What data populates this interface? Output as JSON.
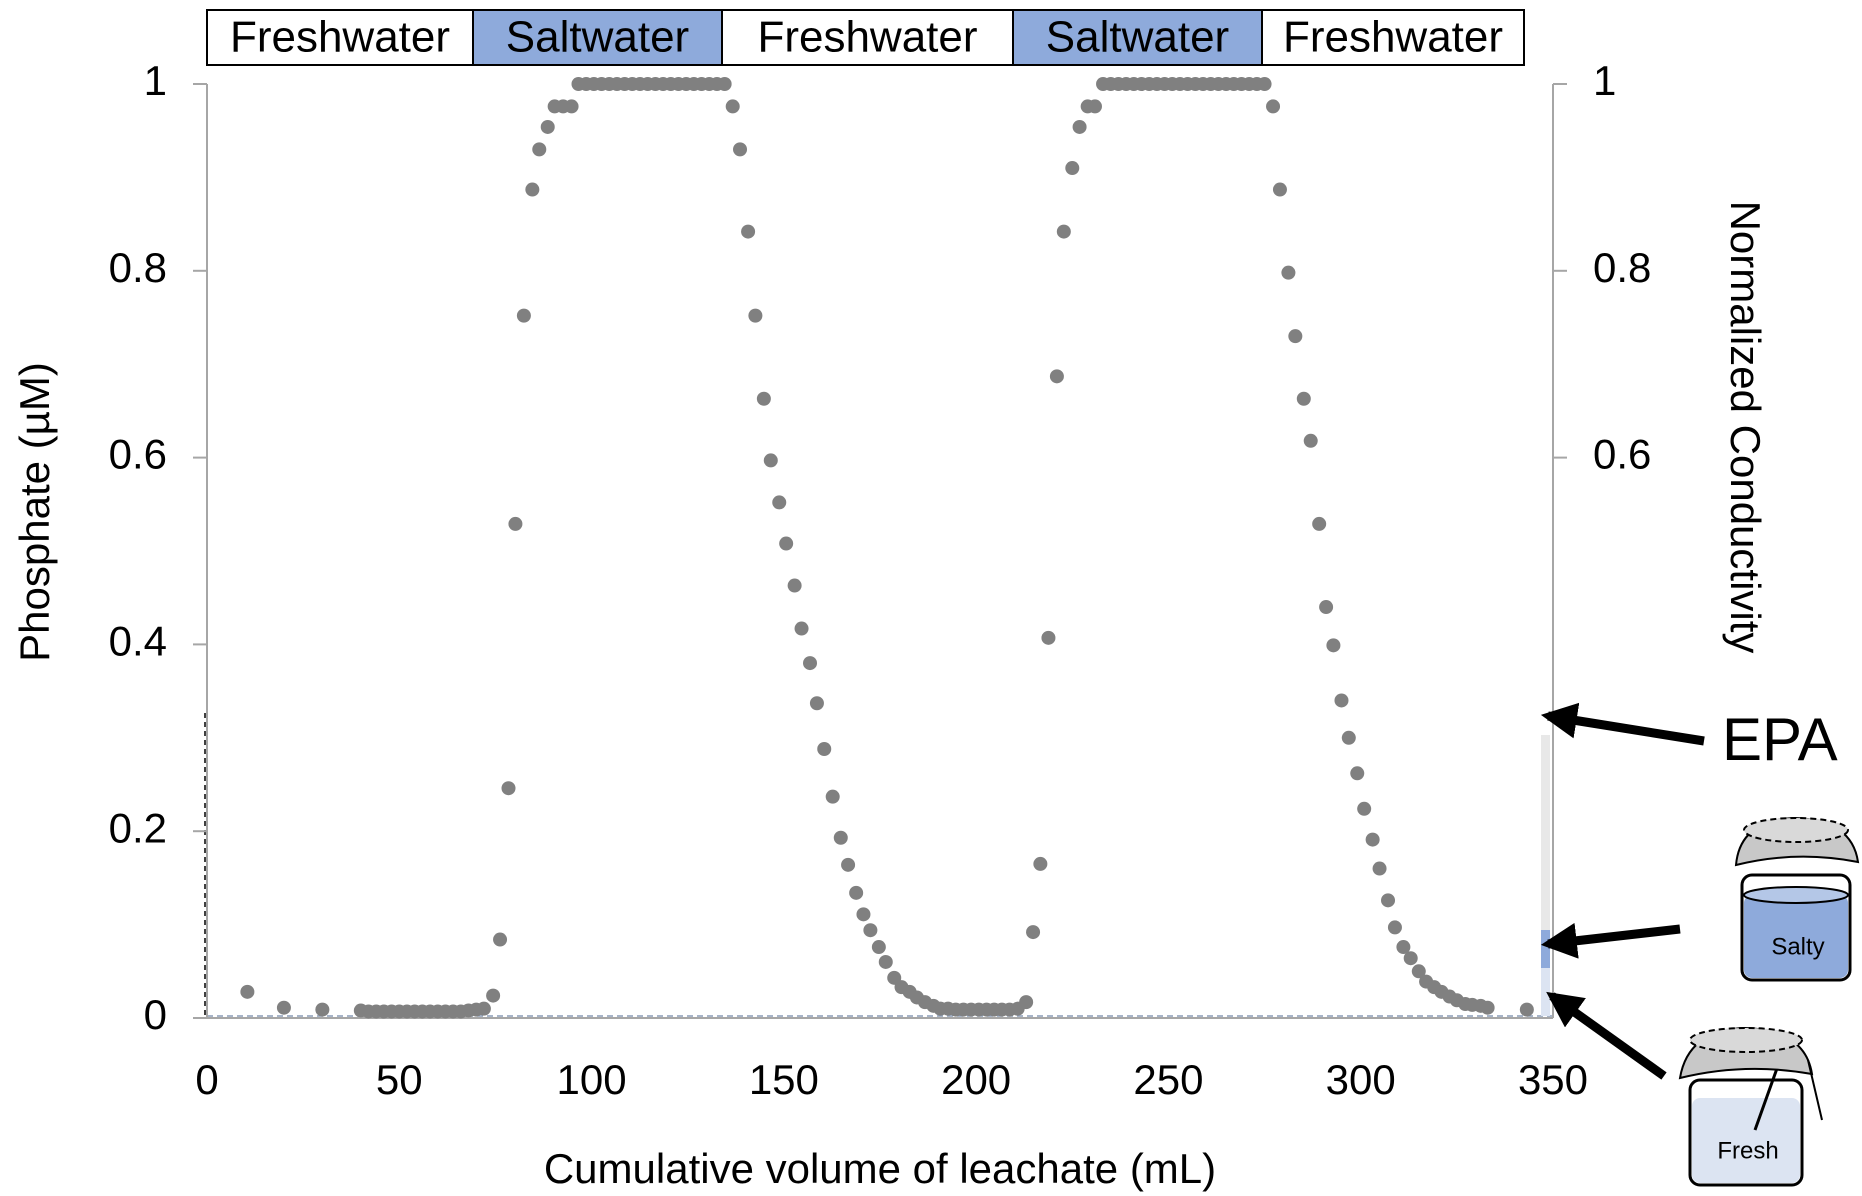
{
  "chart_data": {
    "type": "scatter",
    "phases": [
      {
        "label": "Freshwater",
        "color": "#ffffff"
      },
      {
        "label": "Saltwater",
        "color": "#8eaadb"
      },
      {
        "label": "Freshwater",
        "color": "#ffffff"
      },
      {
        "label": "Saltwater",
        "color": "#8eaadb"
      },
      {
        "label": "Freshwater",
        "color": "#ffffff"
      }
    ],
    "x_label": "Cumulative volume of leachate (mL)",
    "y_label": "Phosphate (µM)",
    "y2_label": "Normalized Conductivity",
    "annotations": {
      "epa": "EPA",
      "salty": "Salty",
      "fresh": "Fresh"
    },
    "xlim": [
      0,
      350
    ],
    "xticks": [
      0,
      50,
      100,
      150,
      200,
      250,
      300,
      350
    ],
    "ylim": [
      0,
      1
    ],
    "yticks": [
      0,
      0.2,
      0.4,
      0.6,
      0.8,
      1
    ],
    "y2lim": [
      0,
      1
    ],
    "y2ticks": [
      0.6,
      0.8,
      1
    ],
    "x": [
      10.5,
      20,
      30,
      40,
      42,
      44,
      46,
      48,
      50,
      52,
      54,
      56,
      58,
      60,
      62,
      64,
      66,
      68,
      70,
      72,
      74.4,
      76.2,
      78.4,
      80.2,
      82.4,
      84.6,
      86.4,
      88.6,
      90.4,
      92.6,
      94.8,
      96.6,
      98.6,
      100.6,
      102.6,
      104.6,
      106.6,
      108.6,
      110.6,
      112.6,
      114.6,
      116.6,
      118.6,
      120.6,
      122.6,
      124.6,
      126.6,
      128.6,
      130.6,
      132.6,
      134.6,
      136.7,
      138.6,
      140.7,
      142.6,
      144.8,
      146.6,
      148.8,
      150.6,
      152.8,
      154.6,
      156.8,
      158.6,
      160.5,
      162.7,
      164.8,
      166.7,
      168.8,
      170.7,
      172.5,
      174.7,
      176.5,
      178.7,
      180.6,
      182.7,
      184.6,
      186.7,
      188.9,
      190.7,
      192.7,
      194.7,
      196.7,
      198.7,
      200.7,
      202.7,
      204.7,
      206.7,
      208.7,
      210.8,
      213,
      214.8,
      216.7,
      218.8,
      221,
      222.8,
      225,
      226.9,
      229,
      230.9,
      233,
      235,
      237,
      239,
      241,
      243,
      245,
      247,
      249,
      251,
      253,
      255,
      257,
      259,
      261,
      263,
      265,
      267,
      269,
      271,
      273,
      275,
      277.2,
      279,
      281.2,
      283,
      285.2,
      287,
      289.2,
      291,
      292.9,
      295,
      296.9,
      299.1,
      300.9,
      303.1,
      304.9,
      307.1,
      308.9,
      311.1,
      313,
      315.1,
      317,
      319.1,
      321,
      323.1,
      325,
      327.2,
      329,
      331.2,
      333,
      343.2
    ],
    "series": [
      {
        "color": "#808080",
        "axis": "y2",
        "values": [
          0.028,
          0.011,
          0.009,
          0.008,
          0.007,
          0.007,
          0.007,
          0.007,
          0.007,
          0.007,
          0.007,
          0.007,
          0.007,
          0.007,
          0.007,
          0.007,
          0.007,
          0.008,
          0.009,
          0.01,
          0.024,
          0.084,
          0.246,
          0.529,
          0.752,
          0.887,
          0.93,
          0.954,
          0.976,
          0.976,
          0.976,
          1,
          1,
          1,
          1,
          1,
          1,
          1,
          1,
          1,
          1,
          1,
          1,
          1,
          1,
          1,
          1,
          1,
          1,
          1,
          1,
          0.976,
          0.93,
          0.842,
          0.752,
          0.663,
          0.597,
          0.552,
          0.508,
          0.463,
          0.417,
          0.38,
          0.337,
          0.288,
          0.237,
          0.193,
          0.164,
          0.134,
          0.111,
          0.094,
          0.076,
          0.06,
          0.043,
          0.033,
          0.028,
          0.022,
          0.017,
          0.013,
          0.01,
          0.01,
          0.009,
          0.009,
          0.009,
          0.009,
          0.009,
          0.009,
          0.009,
          0.009,
          0.01,
          0.017,
          0.092,
          0.165,
          0.407,
          0.687,
          0.842,
          0.91,
          0.954,
          0.976,
          0.976,
          1,
          1,
          1,
          1,
          1,
          1,
          1,
          1,
          1,
          1,
          1,
          1,
          1,
          1,
          1,
          1,
          1,
          1,
          1,
          1,
          1,
          1,
          0.976,
          0.887,
          0.798,
          0.73,
          0.663,
          0.618,
          0.529,
          0.44,
          0.399,
          0.34,
          0.3,
          0.262,
          0.224,
          0.191,
          0.16,
          0.126,
          0.097,
          0.076,
          0.064,
          0.05,
          0.039,
          0.033,
          0.028,
          0.023,
          0.019,
          0.015,
          0.014,
          0.013,
          0.011,
          0.009
        ]
      }
    ]
  }
}
